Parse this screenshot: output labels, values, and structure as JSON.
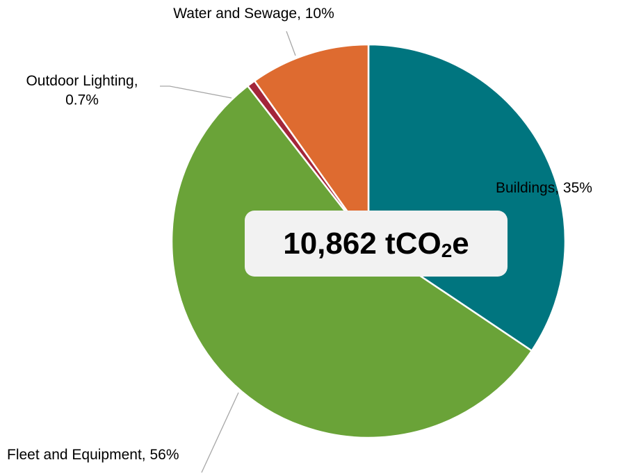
{
  "chart_data": {
    "type": "pie",
    "categories": [
      "Buildings",
      "Fleet and Equipment",
      "Outdoor Lighting",
      "Water and Sewage"
    ],
    "values": [
      35,
      56,
      0.7,
      10
    ],
    "value_labels": [
      "35%",
      "56%",
      "0.7%",
      "10%"
    ],
    "colors": [
      "#00757f",
      "#6aa338",
      "#a3263a",
      "#de6b30"
    ],
    "center_label": {
      "value": 10862,
      "label": "10,862",
      "unit": "tCO",
      "unit_sub": "2",
      "unit_suffix": "e"
    }
  }
}
